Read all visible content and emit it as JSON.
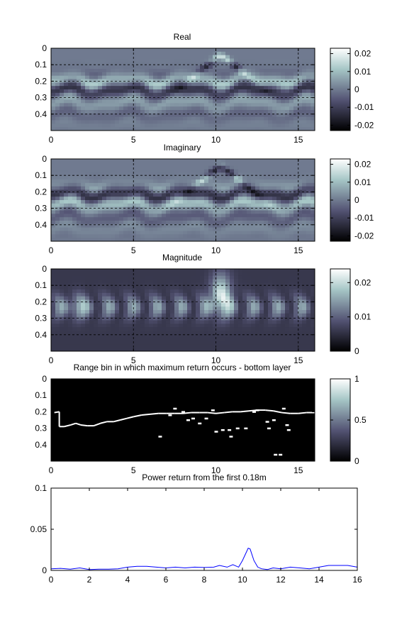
{
  "chart_data": [
    {
      "type": "heatmap",
      "title": "Real",
      "xlim": [
        0,
        16
      ],
      "ylim": [
        0,
        0.5
      ],
      "y_reversed": true,
      "x_ticks": [
        "0",
        "5",
        "10",
        "15"
      ],
      "y_ticks": [
        "0",
        "0.1",
        "0.2",
        "0.3",
        "0.4"
      ],
      "grid": true,
      "colormap": "bone",
      "colorbar": {
        "ticks": [
          "0.02",
          "0.01",
          "0",
          "-0.01",
          "-0.02"
        ],
        "range": [
          -0.023,
          0.023
        ]
      }
    },
    {
      "type": "heatmap",
      "title": "Imaginary",
      "xlim": [
        0,
        16
      ],
      "ylim": [
        0,
        0.5
      ],
      "y_reversed": true,
      "x_ticks": [
        "0",
        "5",
        "10",
        "15"
      ],
      "y_ticks": [
        "0",
        "0.1",
        "0.2",
        "0.3",
        "0.4"
      ],
      "grid": true,
      "colormap": "bone",
      "colorbar": {
        "ticks": [
          "0.02",
          "0.01",
          "0",
          "-0.01",
          "-0.02"
        ],
        "range": [
          -0.023,
          0.023
        ]
      }
    },
    {
      "type": "heatmap",
      "title": "Magnitude",
      "xlim": [
        0,
        16
      ],
      "ylim": [
        0,
        0.5
      ],
      "y_reversed": true,
      "x_ticks": [
        "0",
        "5",
        "10",
        "15"
      ],
      "y_ticks": [
        "0",
        "0.1",
        "0.2",
        "0.3",
        "0.4"
      ],
      "grid": true,
      "colormap": "bone",
      "colorbar": {
        "ticks": [
          "0.02",
          "0.01",
          "0"
        ],
        "range": [
          0,
          0.024
        ]
      }
    },
    {
      "type": "heatmap",
      "title": "Range bin in which maximum return occurs - bottom layer",
      "xlim": [
        0,
        16
      ],
      "ylim": [
        0,
        0.5
      ],
      "y_reversed": true,
      "x_ticks": [
        "0",
        "5",
        "10",
        "15"
      ],
      "y_ticks": [
        "0",
        "0.1",
        "0.2",
        "0.3",
        "0.4"
      ],
      "grid": false,
      "colormap": "bone",
      "colorbar": {
        "ticks": [
          "1",
          "0.5",
          "0"
        ],
        "range": [
          0,
          1
        ]
      },
      "max_return_depth": [
        [
          0.2,
          0.205
        ],
        [
          0.5,
          0.2
        ],
        [
          0.5,
          0.29
        ],
        [
          0.8,
          0.29
        ],
        [
          1.2,
          0.28
        ],
        [
          1.5,
          0.27
        ],
        [
          1.8,
          0.28
        ],
        [
          2.2,
          0.285
        ],
        [
          2.6,
          0.285
        ],
        [
          3.0,
          0.27
        ],
        [
          3.4,
          0.26
        ],
        [
          3.8,
          0.26
        ],
        [
          4.2,
          0.25
        ],
        [
          4.6,
          0.24
        ],
        [
          5.0,
          0.23
        ],
        [
          5.5,
          0.22
        ],
        [
          6.0,
          0.215
        ],
        [
          6.5,
          0.21
        ],
        [
          7.0,
          0.21
        ],
        [
          7.5,
          0.21
        ],
        [
          8.0,
          0.21
        ],
        [
          8.5,
          0.205
        ],
        [
          9.0,
          0.205
        ],
        [
          9.5,
          0.205
        ],
        [
          10.0,
          0.21
        ],
        [
          10.5,
          0.205
        ],
        [
          11.0,
          0.2
        ],
        [
          11.5,
          0.2
        ],
        [
          12.0,
          0.195
        ],
        [
          12.5,
          0.19
        ],
        [
          13.0,
          0.19
        ],
        [
          13.5,
          0.195
        ],
        [
          14.0,
          0.205
        ],
        [
          14.5,
          0.21
        ],
        [
          15.0,
          0.21
        ],
        [
          15.5,
          0.205
        ],
        [
          16.0,
          0.205
        ]
      ],
      "secondary_returns": [
        [
          6.6,
          0.35
        ],
        [
          7.2,
          0.22
        ],
        [
          7.5,
          0.18
        ],
        [
          8.0,
          0.2
        ],
        [
          8.3,
          0.25
        ],
        [
          8.6,
          0.24
        ],
        [
          9.0,
          0.27
        ],
        [
          9.4,
          0.24
        ],
        [
          9.8,
          0.19
        ],
        [
          10.0,
          0.32
        ],
        [
          10.4,
          0.31
        ],
        [
          10.8,
          0.31
        ],
        [
          10.9,
          0.35
        ],
        [
          11.3,
          0.3
        ],
        [
          11.8,
          0.3
        ],
        [
          12.3,
          0.2
        ],
        [
          12.5,
          0.19
        ],
        [
          13.1,
          0.26
        ],
        [
          13.2,
          0.3
        ],
        [
          13.5,
          0.25
        ],
        [
          13.6,
          0.46
        ],
        [
          13.9,
          0.46
        ],
        [
          14.1,
          0.18
        ],
        [
          14.3,
          0.28
        ],
        [
          14.4,
          0.31
        ]
      ]
    },
    {
      "type": "line",
      "title": "Power return from the first 0.18m",
      "xlim": [
        0,
        16
      ],
      "ylim": [
        0,
        0.1
      ],
      "x_ticks": [
        "0",
        "2",
        "4",
        "6",
        "8",
        "10",
        "12",
        "14",
        "16"
      ],
      "y_ticks": [
        "0",
        "0.05",
        "0.1"
      ],
      "grid": false,
      "line_color": "#0000ff",
      "series": [
        {
          "x": [
            0,
            0.5,
            1,
            1.5,
            2,
            2.5,
            3,
            3.5,
            4,
            4.5,
            5,
            5.5,
            6,
            6.5,
            7,
            7.5,
            8,
            8.5,
            8.8,
            9.2,
            9.5,
            9.8,
            10,
            10.2,
            10.3,
            10.4,
            10.6,
            10.8,
            11,
            11.3,
            11.6,
            12,
            12.5,
            13,
            13.5,
            14,
            14.5,
            15,
            15.5,
            16
          ],
          "y": [
            0.002,
            0.0025,
            0.0015,
            0.003,
            0.001,
            0.0015,
            0.0015,
            0.002,
            0.004,
            0.005,
            0.005,
            0.004,
            0.003,
            0.004,
            0.003,
            0.004,
            0.0035,
            0.004,
            0.006,
            0.004,
            0.007,
            0.004,
            0.012,
            0.022,
            0.027,
            0.026,
            0.012,
            0.004,
            0.002,
            0.001,
            0.003,
            0.002,
            0.004,
            0.003,
            0.002,
            0.004,
            0.006,
            0.006,
            0.006,
            0.004
          ]
        }
      ]
    }
  ]
}
